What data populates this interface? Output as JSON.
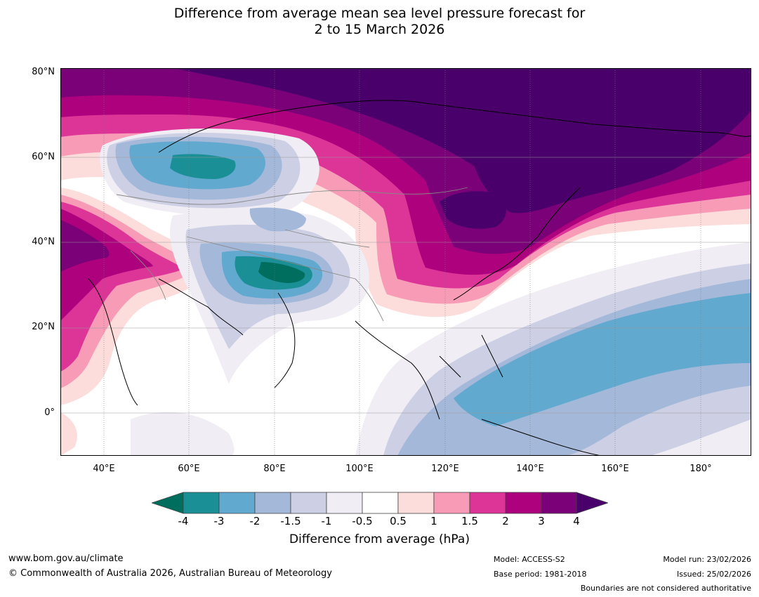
{
  "title": {
    "line1": "Difference from average mean sea level pressure forecast for",
    "line2": "2 to 15 March 2026"
  },
  "map": {
    "latitude_labels": [
      "80°N",
      "60°N",
      "40°N",
      "20°N",
      "0°"
    ],
    "longitude_labels": [
      "40°E",
      "60°E",
      "80°E",
      "100°E",
      "120°E",
      "140°E",
      "160°E",
      "180°"
    ]
  },
  "colorbar": {
    "title": "Difference from average (hPa)",
    "ticks": [
      "-4",
      "-3",
      "-2",
      "-1.5",
      "-1",
      "-0.5",
      "0.5",
      "1",
      "1.5",
      "2",
      "3",
      "4"
    ],
    "colors": {
      "lt_m4": "#006e5e",
      "m4_m3": "#1a8f96",
      "m3_m2": "#62a9cf",
      "m2_m15": "#a4b9d9",
      "m15_m1": "#cdd0e4",
      "m1_m05": "#f0edf4",
      "m05_05": "#ffffff",
      "p05_1": "#fddcdc",
      "p1_15": "#f89bb7",
      "p15_2": "#dd3497",
      "p2_3": "#ad017e",
      "p3_4": "#7a0177",
      "gt_4": "#4a006a"
    }
  },
  "footer": {
    "url": "www.bom.gov.au/climate",
    "copyright": "© Commonwealth of Australia 2026, Australian Bureau of Meteorology",
    "model": "Model: ACCESS-S2",
    "base_period": "Base period: 1981-2018",
    "model_run": "Model run: 23/02/2026",
    "issued": "Issued: 25/02/2026",
    "boundaries": "Boundaries are not considered authoritative"
  }
}
